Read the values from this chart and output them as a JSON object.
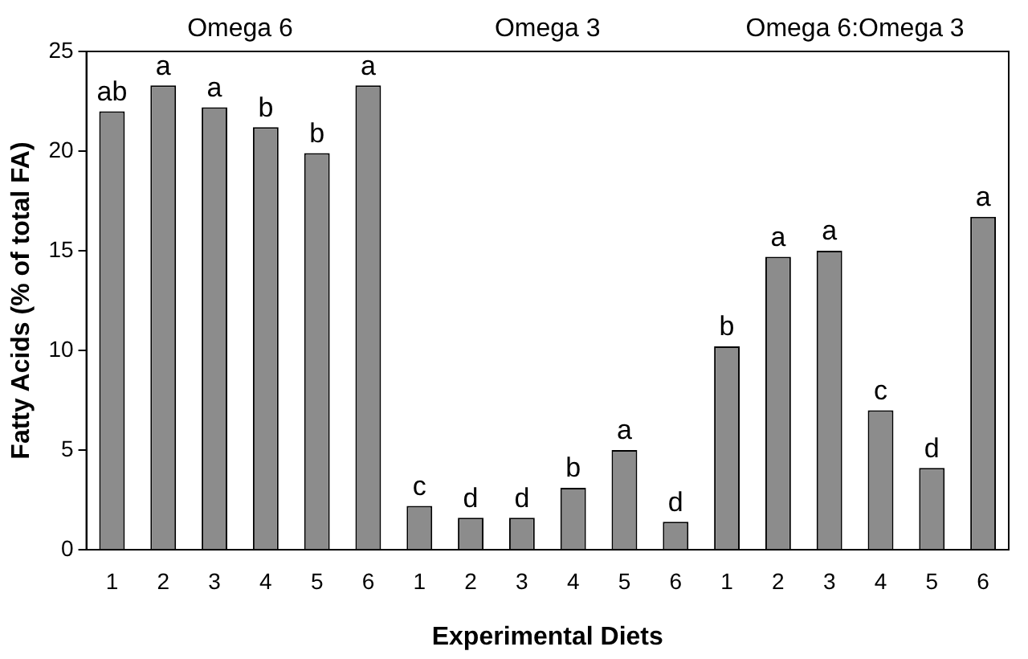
{
  "chart_data": {
    "type": "bar",
    "xlabel": "Experimental Diets",
    "ylabel": "Fatty Acids (% of total FA)",
    "annotations": [
      "Omega 6",
      "Omega 3",
      "Omega 6:Omega 3"
    ],
    "categories": [
      "1",
      "2",
      "3",
      "4",
      "5",
      "6",
      "1",
      "2",
      "3",
      "4",
      "5",
      "6",
      "1",
      "2",
      "3",
      "4",
      "5",
      "6"
    ],
    "values": [
      22.0,
      23.3,
      22.2,
      21.2,
      19.9,
      23.3,
      2.2,
      1.6,
      1.6,
      3.1,
      5.0,
      1.4,
      10.2,
      14.7,
      15.0,
      7.0,
      4.1,
      16.7
    ],
    "value_labels": [
      "ab",
      "a",
      "a",
      "b",
      "b",
      "a",
      "c",
      "d",
      "d",
      "b",
      "a",
      "d",
      "b",
      "a",
      "a",
      "c",
      "d",
      "a"
    ],
    "color": "#8c8c8c",
    "ylim": [
      0,
      25
    ],
    "yticks": [
      0,
      5,
      10,
      15,
      20,
      25
    ],
    "grid": false,
    "legend": false
  }
}
